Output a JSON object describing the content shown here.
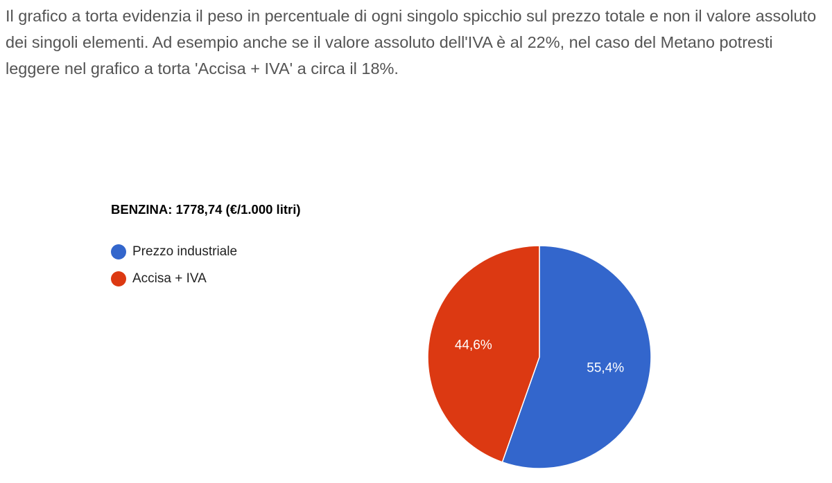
{
  "intro_text": "Il grafico a torta evidenzia il peso in percentuale di ogni singolo spicchio sul prezzo totale e non il valore assoluto dei singoli elementi. Ad esempio anche se il valore assoluto dell'IVA è al 22%, nel caso del Metano potresti leggere nel grafico a torta 'Accisa + IVA' a circa il 18%.",
  "chart_data": {
    "type": "pie",
    "title": "BENZINA: 1778,74 (€/1.000 litri)",
    "legend_position": "left",
    "slices": [
      {
        "name": "Prezzo industriale",
        "value": 55.4,
        "label": "55,4%",
        "color": "#3366cc"
      },
      {
        "name": "Accisa + IVA",
        "value": 44.6,
        "label": "44,6%",
        "color": "#dc3912"
      }
    ]
  }
}
